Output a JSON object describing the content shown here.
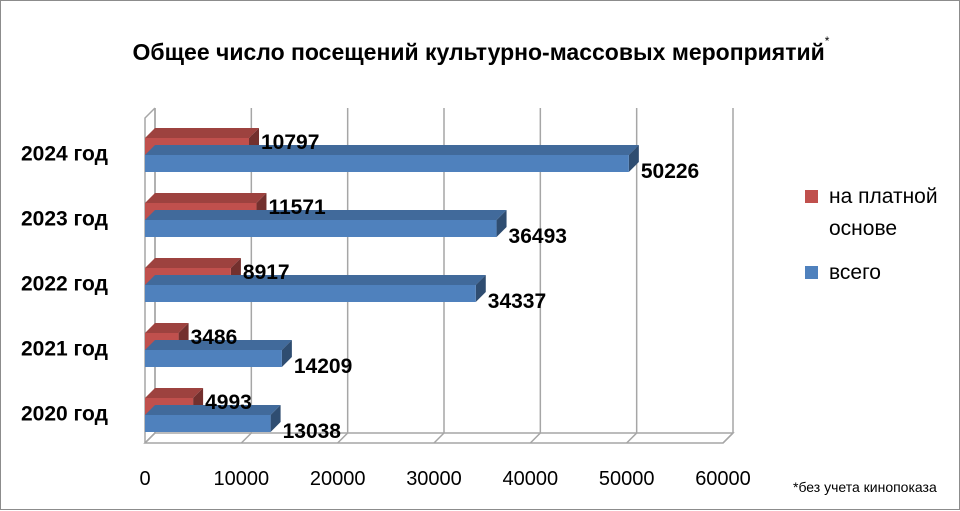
{
  "chart_data": {
    "type": "bar",
    "orientation": "horizontal",
    "title": "Общее число посещений культурно-массовых мероприятий",
    "title_mark": "*",
    "categories": [
      "2020 год",
      "2021 год",
      "2022 год",
      "2023 год",
      "2024 год"
    ],
    "series": [
      {
        "name": "на платной основе",
        "color": "#c0504d",
        "values": [
          4993,
          3486,
          8917,
          11571,
          10797
        ]
      },
      {
        "name": "всего",
        "color": "#4f81bd",
        "values": [
          13038,
          14209,
          34337,
          36493,
          50226
        ]
      }
    ],
    "xlim": [
      0,
      60000
    ],
    "x_ticks": [
      "0",
      "10000",
      "20000",
      "30000",
      "40000",
      "50000",
      "60000"
    ],
    "grid": true,
    "legend_position": "right",
    "footnote": "*без учета кинопоказа"
  }
}
